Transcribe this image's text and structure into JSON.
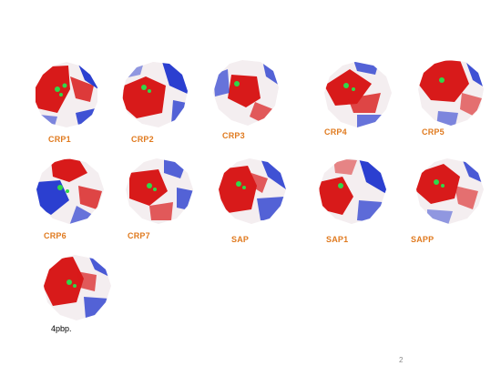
{
  "colors": {
    "label": "#e07a1f",
    "negative": "#d81a1a",
    "positive": "#2b3fd0",
    "neutral": "#f4eef0",
    "ligand": "#2fd84a",
    "footer": "#888888"
  },
  "panels": [
    {
      "name": "CRP1"
    },
    {
      "name": "CRP2"
    },
    {
      "name": "CRP3"
    },
    {
      "name": "CRP4"
    },
    {
      "name": "CRP5"
    },
    {
      "name": "CRP6"
    },
    {
      "name": "CRP7"
    },
    {
      "name": "SAP"
    },
    {
      "name": "SAP1"
    },
    {
      "name": "SAPP"
    },
    {
      "name": "4pbp."
    }
  ],
  "footer": {
    "page_number": "2"
  }
}
